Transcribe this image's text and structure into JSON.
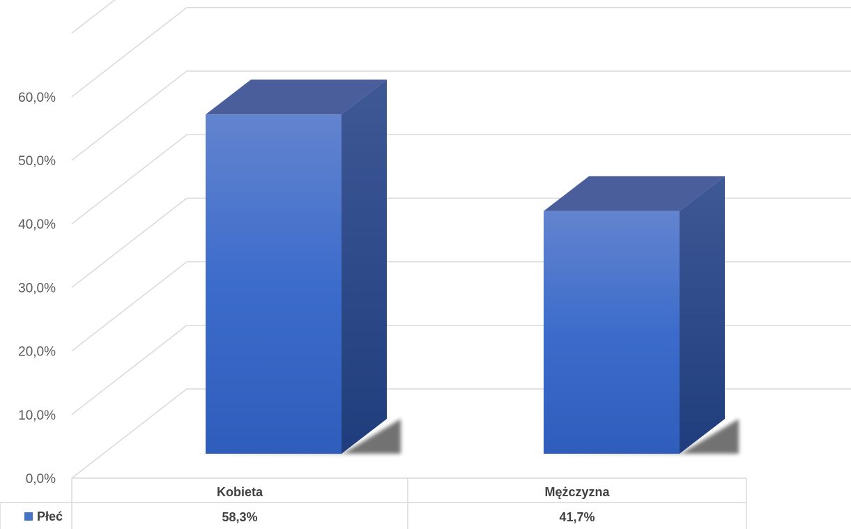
{
  "chart_data": {
    "type": "bar",
    "style": "3d-column-with-data-table",
    "categories": [
      "Kobieta",
      "Mężczyzna"
    ],
    "series": [
      {
        "name": "Płeć",
        "values": [
          58.3,
          41.7
        ],
        "value_labels": [
          "58,3%",
          "41,7%"
        ],
        "color": "#4472C4"
      }
    ],
    "y_ticks": [
      "0,0%",
      "10,0%",
      "20,0%",
      "30,0%",
      "40,0%",
      "50,0%",
      "60,0%"
    ],
    "ylim": [
      0,
      60
    ],
    "grid": true,
    "legend": "data-table-left"
  }
}
